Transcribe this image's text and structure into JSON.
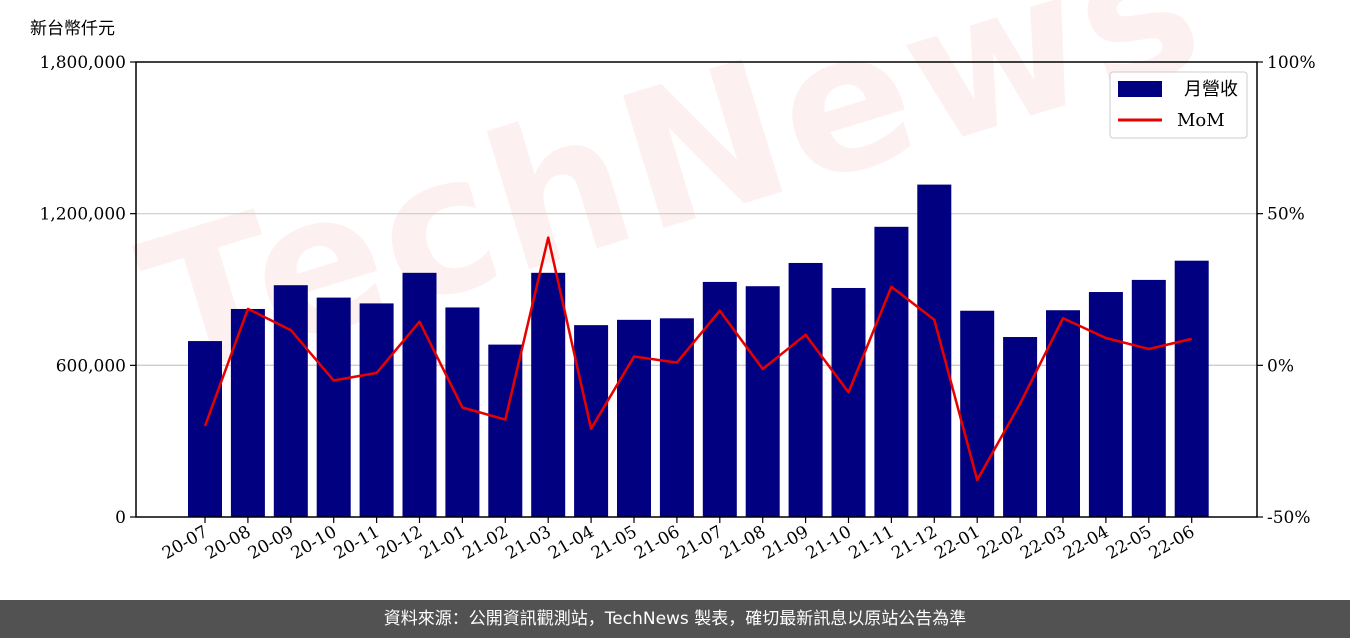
{
  "unit_label": "新台幣仟元",
  "footer": "資料來源：公開資訊觀測站，TechNews 製表，確切最新訊息以原站公告為準",
  "watermark": "TechNews",
  "colors": {
    "bar": "#000080",
    "line": "#e60000",
    "grid": "#cccccc",
    "footer_bg": "#525252"
  },
  "chart_data": {
    "type": "bar",
    "categories": [
      "20-07",
      "20-08",
      "20-09",
      "20-10",
      "20-11",
      "20-12",
      "21-01",
      "21-02",
      "21-03",
      "21-04",
      "21-05",
      "21-06",
      "21-07",
      "21-08",
      "21-09",
      "21-10",
      "21-11",
      "21-12",
      "22-01",
      "22-02",
      "22-03",
      "22-04",
      "22-05",
      "22-06"
    ],
    "series": [
      {
        "name": "月營收",
        "type": "bar",
        "axis": "left",
        "values": [
          696000,
          823000,
          917000,
          868000,
          845000,
          966000,
          829000,
          682000,
          966000,
          759000,
          780000,
          786000,
          930000,
          913000,
          1005000,
          906000,
          1148000,
          1315000,
          816000,
          712000,
          818000,
          890000,
          938000,
          1014000
        ]
      },
      {
        "name": "MoM",
        "type": "line",
        "axis": "right",
        "values": [
          -20.0,
          18.6,
          11.6,
          -5.0,
          -2.5,
          14.4,
          -13.9,
          -17.9,
          42.1,
          -20.9,
          2.9,
          0.9,
          18.0,
          -1.2,
          10.1,
          -8.9,
          25.9,
          15.0,
          -37.8,
          -12.6,
          15.5,
          9.0,
          5.4,
          8.7
        ]
      }
    ],
    "y_left": {
      "min": 0,
      "max": 1800000,
      "ticks": [
        0,
        600000,
        1200000,
        1800000
      ],
      "tick_labels": [
        "0",
        "600,000",
        "1,200,000",
        "1,800,000"
      ]
    },
    "y_right": {
      "min": -50,
      "max": 100,
      "ticks": [
        -50,
        0,
        50,
        100
      ],
      "tick_labels": [
        "-50%",
        "0%",
        "50%",
        "100%"
      ]
    },
    "grid": "horizontal-major",
    "legend": {
      "placement": "top-right"
    }
  }
}
